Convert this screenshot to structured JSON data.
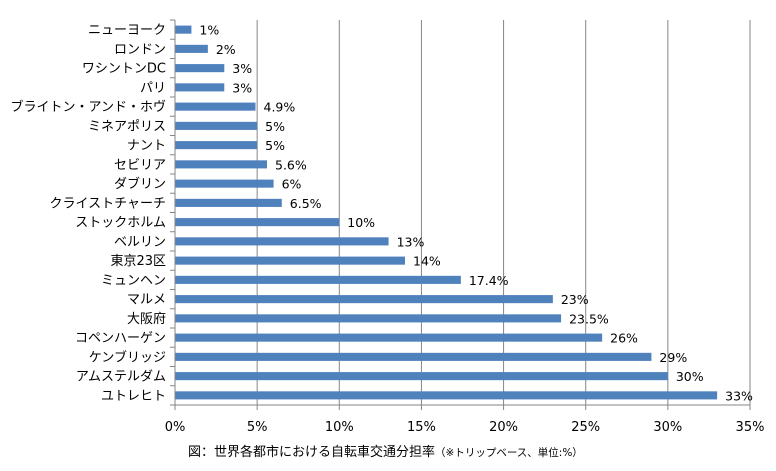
{
  "chart_data": {
    "type": "bar",
    "orientation": "horizontal",
    "categories": [
      "ニューヨーク",
      "ロンドン",
      "ワシントンDC",
      "パリ",
      "ブライトン・アンド・ホヴ",
      "ミネアポリス",
      "ナント",
      "セビリア",
      "ダブリン",
      "クライストチャーチ",
      "ストックホルム",
      "ベルリン",
      "東京23区",
      "ミュンヘン",
      "マルメ",
      "大阪府",
      "コペンハーゲン",
      "ケンブリッジ",
      "アムステルダム",
      "ユトレヒト"
    ],
    "values": [
      1,
      2,
      3,
      3,
      4.9,
      5,
      5,
      5.6,
      6,
      6.5,
      10,
      13,
      14,
      17.4,
      23,
      23.5,
      26,
      29,
      30,
      33
    ],
    "value_labels": [
      "1%",
      "2%",
      "3%",
      "3%",
      "4.9%",
      "5%",
      "5%",
      "5.6%",
      "6%",
      "6.5%",
      "10%",
      "13%",
      "14%",
      "17.4%",
      "23%",
      "23.5%",
      "26%",
      "29%",
      "30%",
      "33%"
    ],
    "x_ticks": [
      0,
      5,
      10,
      15,
      20,
      25,
      30,
      35
    ],
    "x_tick_labels": [
      "0%",
      "5%",
      "10%",
      "15%",
      "20%",
      "25%",
      "30%",
      "35%"
    ],
    "xlim": [
      0,
      35
    ],
    "grid": "vertical",
    "legend": "none",
    "title": "",
    "xlabel": "",
    "ylabel": "",
    "caption_main": "図：世界各都市における自転車交通分担率",
    "caption_note": "（※トリップベース、単位:%）"
  },
  "colors": {
    "bar": "#4f81bd",
    "gridline": "#868686",
    "axis": "#868686",
    "background": "#ffffff"
  }
}
